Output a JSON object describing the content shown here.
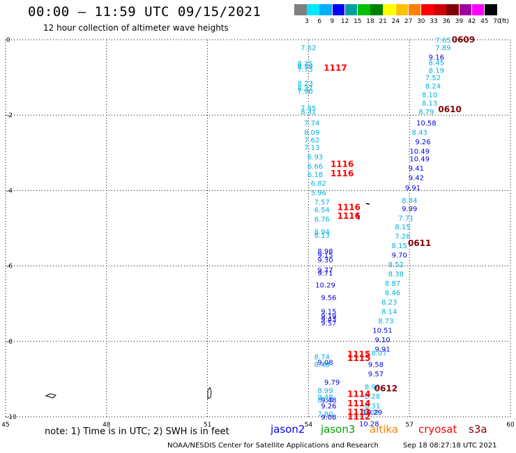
{
  "header": {
    "title": "00:00 – 11:59 UTC 09/15/2021",
    "subtitle": "12 hour collection of altimeter wave heights"
  },
  "colorbar": {
    "unit": "(ft)",
    "ticks": [
      "3",
      "6",
      "9",
      "12",
      "15",
      "18",
      "21",
      "24",
      "27",
      "30",
      "33",
      "36",
      "39",
      "42",
      "45",
      "70"
    ],
    "colors": [
      "#7f7f7f",
      "#00e8ff",
      "#00b0ff",
      "#0000ff",
      "#00a0a0",
      "#00c000",
      "#008000",
      "#ffff00",
      "#ffc000",
      "#ff8000",
      "#ff0000",
      "#d00000",
      "#800000",
      "#a000a0",
      "#ff00ff",
      "#000000"
    ]
  },
  "footer": {
    "note": "note: 1) Time is in UTC; 2) SWH is in feet",
    "satellites": [
      {
        "name": "jason2",
        "color": "#0000ff"
      },
      {
        "name": "jason3",
        "color": "#00a000"
      },
      {
        "name": "altika",
        "color": "#ff8000"
      },
      {
        "name": "cryosat",
        "color": "#ff0000"
      },
      {
        "name": "s3a",
        "color": "#800000"
      }
    ],
    "credit": "NOAA/NESDIS Center for Satellite Applications and Research",
    "timestamp": "Sep 18 08:27:18 UTC 2021"
  },
  "chart_data": {
    "type": "scatter",
    "xlim": [
      45,
      60
    ],
    "ylim": [
      -10,
      0
    ],
    "x_ticks": [
      "45",
      "48",
      "51",
      "54",
      "57",
      "60"
    ],
    "y_ticks": [
      "0",
      "-2",
      "-4",
      "-6",
      "-8",
      "-10"
    ],
    "grid": true,
    "series": [
      {
        "name": "jason3 track (west)",
        "color": "#00b0e0",
        "points": [
          {
            "x": 54.0,
            "y": -0.2,
            "label": "7.52"
          },
          {
            "x": 53.9,
            "y": -0.62,
            "label": "8.35"
          },
          {
            "x": 53.9,
            "y": -0.7,
            "label": "8.59"
          },
          {
            "x": 53.9,
            "y": -0.78,
            "label": "7.75"
          },
          {
            "x": 53.9,
            "y": -1.15,
            "label": "8.23"
          },
          {
            "x": 53.9,
            "y": -1.28,
            "label": "8.37"
          },
          {
            "x": 53.9,
            "y": -1.36,
            "label": "7.90"
          },
          {
            "x": 54.0,
            "y": -1.8,
            "label": "7.85"
          },
          {
            "x": 54.0,
            "y": -1.9,
            "label": "8.31"
          },
          {
            "x": 54.1,
            "y": -2.2,
            "label": "7.74"
          },
          {
            "x": 54.1,
            "y": -2.45,
            "label": "8.09"
          },
          {
            "x": 54.1,
            "y": -2.65,
            "label": "7.62"
          },
          {
            "x": 54.1,
            "y": -2.85,
            "label": "7.13"
          },
          {
            "x": 54.2,
            "y": -3.1,
            "label": "6.93"
          },
          {
            "x": 54.2,
            "y": -3.35,
            "label": "6.66"
          },
          {
            "x": 54.2,
            "y": -3.57,
            "label": "6.18"
          },
          {
            "x": 54.3,
            "y": -3.8,
            "label": "6.82"
          },
          {
            "x": 54.3,
            "y": -4.05,
            "label": "5.96"
          },
          {
            "x": 54.4,
            "y": -4.3,
            "label": "7.57"
          },
          {
            "x": 54.4,
            "y": -4.5,
            "label": "6.54"
          },
          {
            "x": 54.4,
            "y": -4.75,
            "label": "6.76"
          },
          {
            "x": 54.4,
            "y": -5.08,
            "label": "8.94"
          },
          {
            "x": 54.4,
            "y": -5.18,
            "label": "8.13"
          },
          {
            "x": 54.4,
            "y": -8.4,
            "label": "8.74"
          },
          {
            "x": 54.4,
            "y": -8.6,
            "label": "8.48"
          },
          {
            "x": 54.5,
            "y": -9.3,
            "label": "8.99"
          },
          {
            "x": 54.5,
            "y": -9.46,
            "label": "9.48"
          },
          {
            "x": 54.5,
            "y": -9.55,
            "label": "8.33"
          },
          {
            "x": 54.5,
            "y": -9.92,
            "label": "7.80"
          }
        ]
      },
      {
        "name": "jason2 track (west)",
        "color": "#0000e0",
        "points": [
          {
            "x": 54.5,
            "y": -5.6,
            "label": "8.98"
          },
          {
            "x": 54.5,
            "y": -5.7,
            "label": "9.15"
          },
          {
            "x": 54.5,
            "y": -5.83,
            "label": "9.30"
          },
          {
            "x": 54.5,
            "y": -6.1,
            "label": "9.77"
          },
          {
            "x": 54.5,
            "y": -6.18,
            "label": "9.71"
          },
          {
            "x": 54.5,
            "y": -6.5,
            "label": "10.29"
          },
          {
            "x": 54.6,
            "y": -6.83,
            "label": "9.56"
          },
          {
            "x": 54.6,
            "y": -7.2,
            "label": "9.15"
          },
          {
            "x": 54.6,
            "y": -7.32,
            "label": "9.19"
          },
          {
            "x": 54.6,
            "y": -7.4,
            "label": "9.43"
          },
          {
            "x": 54.6,
            "y": -7.5,
            "label": "9.57"
          },
          {
            "x": 54.5,
            "y": -8.55,
            "label": "9.08"
          },
          {
            "x": 54.7,
            "y": -9.08,
            "label": "9.79"
          },
          {
            "x": 54.6,
            "y": -9.55,
            "label": "9.48"
          },
          {
            "x": 54.6,
            "y": -9.7,
            "label": "9.26"
          },
          {
            "x": 54.6,
            "y": -10.0,
            "label": "9.08"
          }
        ]
      },
      {
        "name": "jason3 track (east)",
        "color": "#00b0e0",
        "points": [
          {
            "x": 58.0,
            "y": 0.0,
            "label": "7.65"
          },
          {
            "x": 58.0,
            "y": -0.2,
            "label": "7.89"
          },
          {
            "x": 57.8,
            "y": -0.6,
            "label": "8.45"
          },
          {
            "x": 57.8,
            "y": -0.8,
            "label": "8.19"
          },
          {
            "x": 57.7,
            "y": -1.0,
            "label": "7.52"
          },
          {
            "x": 57.7,
            "y": -1.22,
            "label": "8.24"
          },
          {
            "x": 57.6,
            "y": -1.45,
            "label": "8.10"
          },
          {
            "x": 57.6,
            "y": -1.67,
            "label": "8.13"
          },
          {
            "x": 57.5,
            "y": -1.9,
            "label": "8.79"
          },
          {
            "x": 57.3,
            "y": -2.45,
            "label": "8.43"
          },
          {
            "x": 57.0,
            "y": -4.25,
            "label": "8.84"
          },
          {
            "x": 56.9,
            "y": -4.72,
            "label": "7.71"
          },
          {
            "x": 56.8,
            "y": -4.95,
            "label": "8.15"
          },
          {
            "x": 56.8,
            "y": -5.2,
            "label": "7.28"
          },
          {
            "x": 56.7,
            "y": -5.45,
            "label": "8.15"
          },
          {
            "x": 56.6,
            "y": -5.95,
            "label": "8.52"
          },
          {
            "x": 56.6,
            "y": -6.2,
            "label": "8.38"
          },
          {
            "x": 56.5,
            "y": -6.45,
            "label": "8.87"
          },
          {
            "x": 56.5,
            "y": -6.7,
            "label": "8.46"
          },
          {
            "x": 56.4,
            "y": -6.95,
            "label": "8.23"
          },
          {
            "x": 56.4,
            "y": -7.2,
            "label": "8.14"
          },
          {
            "x": 56.3,
            "y": -7.45,
            "label": "8.73"
          },
          {
            "x": 56.1,
            "y": -8.3,
            "label": "8.07"
          },
          {
            "x": 55.9,
            "y": -9.2,
            "label": "8.90"
          },
          {
            "x": 55.9,
            "y": -9.45,
            "label": "8.28"
          },
          {
            "x": 55.9,
            "y": -9.7,
            "label": "8.31"
          },
          {
            "x": 55.8,
            "y": -9.87,
            "label": "10.09"
          }
        ]
      },
      {
        "name": "jason2 track (east)",
        "color": "#0000e0",
        "points": [
          {
            "x": 57.8,
            "y": -0.45,
            "label": "9.16"
          },
          {
            "x": 57.5,
            "y": -2.2,
            "label": "10.58"
          },
          {
            "x": 57.4,
            "y": -2.7,
            "label": "9.26"
          },
          {
            "x": 57.3,
            "y": -2.95,
            "label": "10.49"
          },
          {
            "x": 57.3,
            "y": -3.15,
            "label": "10.49"
          },
          {
            "x": 57.2,
            "y": -3.4,
            "label": "9.41"
          },
          {
            "x": 57.2,
            "y": -3.65,
            "label": "9.42"
          },
          {
            "x": 57.1,
            "y": -3.92,
            "label": "9.91"
          },
          {
            "x": 57.0,
            "y": -4.47,
            "label": "9.99"
          },
          {
            "x": 56.7,
            "y": -5.7,
            "label": "9.70"
          },
          {
            "x": 56.2,
            "y": -7.7,
            "label": "10.51"
          },
          {
            "x": 56.2,
            "y": -7.95,
            "label": "9.10"
          },
          {
            "x": 56.2,
            "y": -8.2,
            "label": "9.91"
          },
          {
            "x": 56.0,
            "y": -8.6,
            "label": "9.58"
          },
          {
            "x": 56.0,
            "y": -8.85,
            "label": "9.57"
          },
          {
            "x": 55.9,
            "y": -9.87,
            "label": "10.29"
          },
          {
            "x": 55.8,
            "y": -10.18,
            "label": "10.28"
          }
        ]
      }
    ],
    "pass_times": [
      {
        "x": 54.8,
        "y": -0.75,
        "label": "1117",
        "color": "#ff0000"
      },
      {
        "x": 55.0,
        "y": -3.3,
        "label": "1116",
        "color": "#ff0000"
      },
      {
        "x": 55.0,
        "y": -3.55,
        "label": "1116",
        "color": "#ff0000"
      },
      {
        "x": 55.2,
        "y": -4.45,
        "label": "1116",
        "color": "#ff0000"
      },
      {
        "x": 55.2,
        "y": -4.68,
        "label": "1116",
        "color": "#ff0000"
      },
      {
        "x": 55.5,
        "y": -8.35,
        "label": "1115",
        "color": "#ff0000"
      },
      {
        "x": 55.5,
        "y": -8.45,
        "label": "1115",
        "color": "#ff0000"
      },
      {
        "x": 55.5,
        "y": -9.4,
        "label": "1114",
        "color": "#ff0000"
      },
      {
        "x": 55.5,
        "y": -9.65,
        "label": "1114",
        "color": "#ff0000"
      },
      {
        "x": 55.5,
        "y": -9.88,
        "label": "1113",
        "color": "#ff0000"
      },
      {
        "x": 55.5,
        "y": -10.0,
        "label": "1112",
        "color": "#ff0000"
      },
      {
        "x": 58.6,
        "y": 0.0,
        "label": "0609",
        "color": "#800000"
      },
      {
        "x": 58.2,
        "y": -1.85,
        "label": "0610",
        "color": "#800000"
      },
      {
        "x": 57.3,
        "y": -5.4,
        "label": "0611",
        "color": "#800000"
      },
      {
        "x": 56.3,
        "y": -9.25,
        "label": "0612",
        "color": "#800000"
      }
    ]
  }
}
